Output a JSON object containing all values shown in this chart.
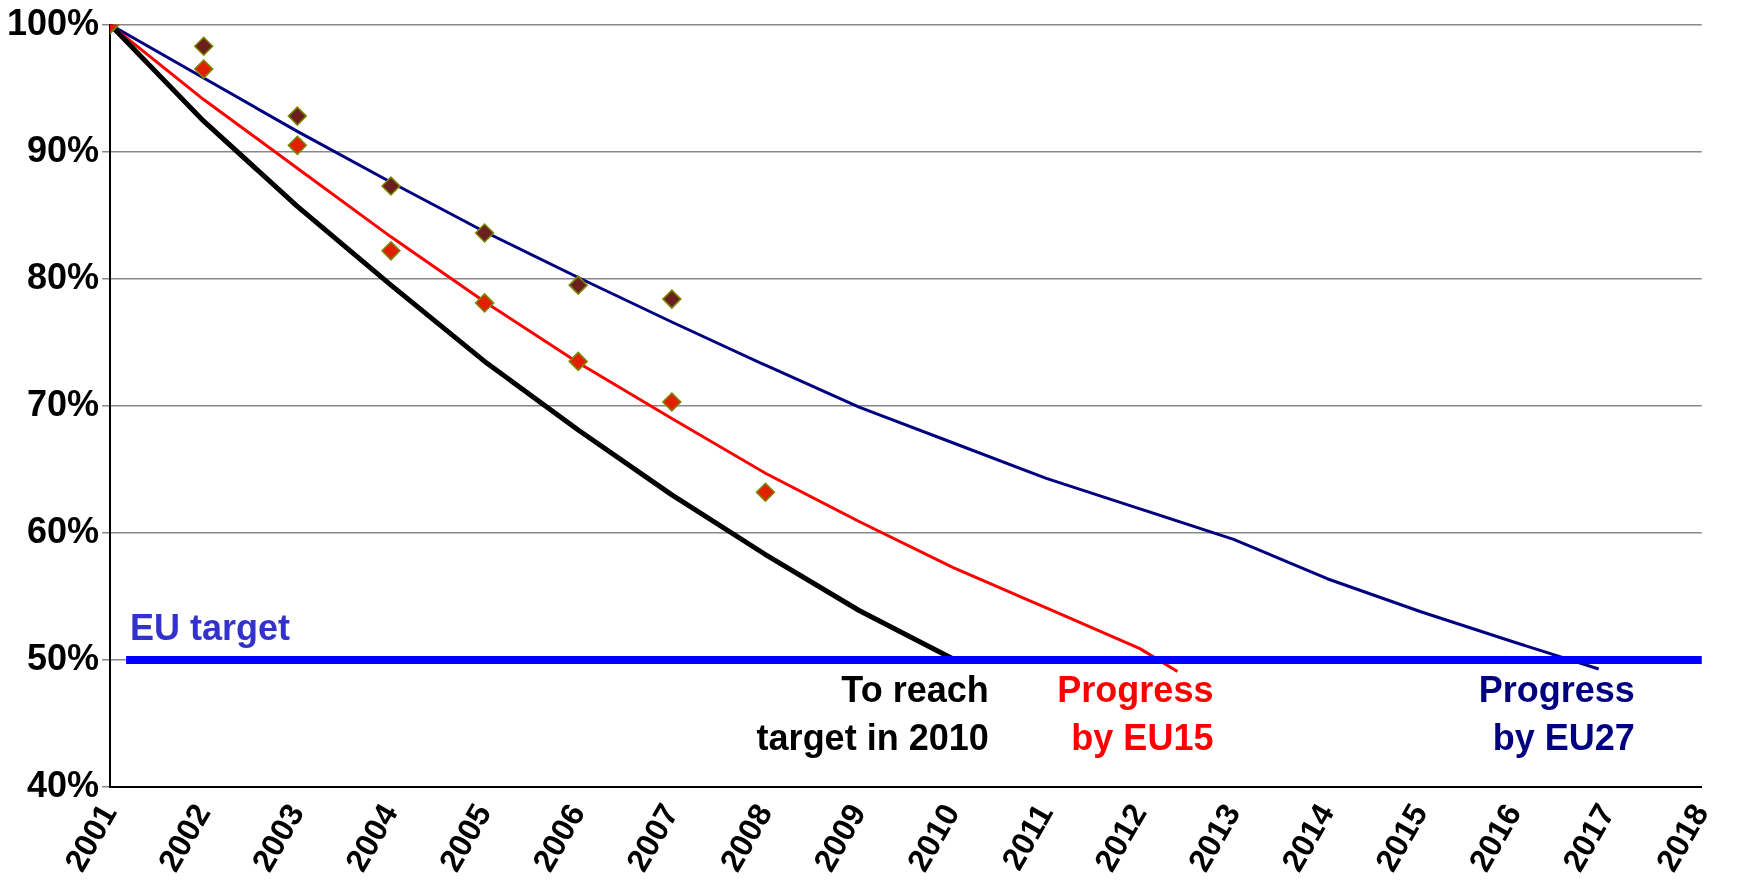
{
  "chart_data": {
    "type": "line",
    "legend": false,
    "grid": "y",
    "xlim": [
      2001,
      2018
    ],
    "xticks": [
      2001,
      2002,
      2003,
      2004,
      2005,
      2006,
      2007,
      2008,
      2009,
      2010,
      2011,
      2012,
      2013,
      2014,
      2015,
      2016,
      2017,
      2018
    ],
    "ylim": [
      40,
      100
    ],
    "yticks": [
      {
        "value": 40,
        "label": "40%"
      },
      {
        "value": 50,
        "label": "50%"
      },
      {
        "value": 60,
        "label": "60%"
      },
      {
        "value": 70,
        "label": "70%"
      },
      {
        "value": 80,
        "label": "80%"
      },
      {
        "value": 90,
        "label": "90%"
      },
      {
        "value": 100,
        "label": "100%"
      }
    ],
    "ref_lines": [
      {
        "axis": "y",
        "value": 50,
        "label": "EU target",
        "color": "#0000ff"
      }
    ],
    "series": [
      {
        "name": "To reach target in 2010",
        "marker": "none",
        "color": "#000000",
        "x": [
          2001,
          2002,
          2003,
          2004,
          2005,
          2006,
          2007,
          2008,
          2009,
          2010
        ],
        "values": [
          100,
          92.4,
          85.7,
          79.5,
          73.5,
          68.1,
          63.0,
          58.3,
          53.9,
          50.1
        ]
      },
      {
        "name": "Progress by EU15",
        "marker": "none",
        "color": "#ff0000",
        "x": [
          2001,
          2002,
          2003,
          2004,
          2005,
          2006,
          2007,
          2008,
          2009,
          2010,
          2011,
          2012,
          2012.4
        ],
        "values": [
          100,
          94.1,
          88.7,
          83.3,
          78.2,
          73.4,
          69.0,
          64.7,
          60.9,
          57.3,
          54.1,
          50.9,
          49.1
        ]
      },
      {
        "name": "Progress by EU27",
        "marker": "none",
        "color": "#000080",
        "x": [
          2001,
          2002,
          2003,
          2004,
          2005,
          2006,
          2007,
          2008,
          2009,
          2010,
          2011,
          2012,
          2013,
          2014,
          2015,
          2016,
          2016.9
        ],
        "values": [
          100,
          95.8,
          91.6,
          87.6,
          83.7,
          80.1,
          76.6,
          73.2,
          69.9,
          67.1,
          64.3,
          61.9,
          59.5,
          56.4,
          53.8,
          51.4,
          49.3
        ]
      },
      {
        "type": "scatter",
        "marker": "diamond",
        "color": "#6b1f1f",
        "x": [
          2002,
          2003,
          2004,
          2005,
          2006,
          2007
        ],
        "values": [
          98.3,
          92.8,
          87.3,
          83.6,
          79.5,
          78.4
        ]
      },
      {
        "type": "scatter",
        "marker": "diamond",
        "color": "#e02000",
        "x": [
          2001,
          2002,
          2003,
          2004,
          2005,
          2006,
          2007,
          2008
        ],
        "values": [
          100,
          96.5,
          90.5,
          82.2,
          78.1,
          73.5,
          70.3,
          63.2
        ]
      }
    ]
  }
}
